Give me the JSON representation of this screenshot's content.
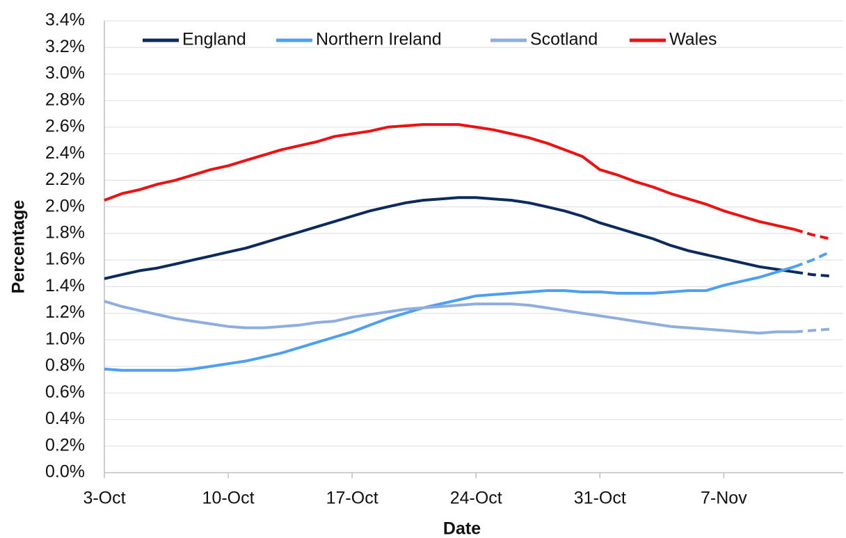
{
  "chart_data": {
    "type": "line",
    "x_label": "Date",
    "y_label": "Percentage",
    "categories": [
      "3-Oct",
      null,
      null,
      null,
      null,
      null,
      null,
      "10-Oct",
      null,
      null,
      null,
      null,
      null,
      null,
      "17-Oct",
      null,
      null,
      null,
      null,
      null,
      null,
      "24-Oct",
      null,
      null,
      null,
      null,
      null,
      null,
      "31-Oct",
      null,
      null,
      null,
      null,
      null,
      null,
      "7-Nov",
      null,
      null,
      null,
      null,
      null,
      null
    ],
    "dashed_from": 39,
    "series": [
      {
        "name": "England",
        "color": "#0b2b5e",
        "values": [
          1.46,
          1.49,
          1.52,
          1.54,
          1.57,
          1.6,
          1.63,
          1.66,
          1.69,
          1.73,
          1.77,
          1.81,
          1.85,
          1.89,
          1.93,
          1.97,
          2.0,
          2.03,
          2.05,
          2.06,
          2.07,
          2.07,
          2.06,
          2.05,
          2.03,
          2.0,
          1.97,
          1.93,
          1.88,
          1.84,
          1.8,
          1.76,
          1.71,
          1.67,
          1.64,
          1.61,
          1.58,
          1.55,
          1.53,
          1.51,
          1.49,
          1.48
        ]
      },
      {
        "name": "Northern Ireland",
        "color": "#4f9ff0",
        "values": [
          0.78,
          0.77,
          0.77,
          0.77,
          0.77,
          0.78,
          0.8,
          0.82,
          0.84,
          0.87,
          0.9,
          0.94,
          0.98,
          1.02,
          1.06,
          1.11,
          1.16,
          1.2,
          1.24,
          1.27,
          1.3,
          1.33,
          1.34,
          1.35,
          1.36,
          1.37,
          1.37,
          1.36,
          1.36,
          1.35,
          1.35,
          1.35,
          1.36,
          1.37,
          1.37,
          1.41,
          1.44,
          1.47,
          1.51,
          1.55,
          1.6,
          1.66
        ]
      },
      {
        "name": "Scotland",
        "color": "#8eaee0",
        "values": [
          1.29,
          1.25,
          1.22,
          1.19,
          1.16,
          1.14,
          1.12,
          1.1,
          1.09,
          1.09,
          1.1,
          1.11,
          1.13,
          1.14,
          1.17,
          1.19,
          1.21,
          1.23,
          1.24,
          1.25,
          1.26,
          1.27,
          1.27,
          1.27,
          1.26,
          1.24,
          1.22,
          1.2,
          1.18,
          1.16,
          1.14,
          1.12,
          1.1,
          1.09,
          1.08,
          1.07,
          1.06,
          1.05,
          1.06,
          1.06,
          1.07,
          1.08
        ]
      },
      {
        "name": "Wales",
        "color": "#ee1111",
        "values": [
          2.05,
          2.1,
          2.13,
          2.17,
          2.2,
          2.24,
          2.28,
          2.31,
          2.35,
          2.39,
          2.43,
          2.46,
          2.49,
          2.53,
          2.55,
          2.57,
          2.6,
          2.61,
          2.62,
          2.62,
          2.62,
          2.6,
          2.58,
          2.55,
          2.52,
          2.48,
          2.43,
          2.38,
          2.28,
          2.24,
          2.19,
          2.15,
          2.1,
          2.06,
          2.02,
          1.97,
          1.93,
          1.89,
          1.86,
          1.83,
          1.79,
          1.76
        ]
      }
    ],
    "ylim": [
      0,
      3.4
    ],
    "yticks": [
      {
        "value": 0,
        "label": "0.0%"
      },
      {
        "value": 0.2,
        "label": "0.2%"
      },
      {
        "value": 0.4,
        "label": "0.4%"
      },
      {
        "value": 0.6,
        "label": "0.6%"
      },
      {
        "value": 0.8,
        "label": "0.8%"
      },
      {
        "value": 1.0,
        "label": "1.0%"
      },
      {
        "value": 1.2,
        "label": "1.2%"
      },
      {
        "value": 1.4,
        "label": "1.4%"
      },
      {
        "value": 1.6,
        "label": "1.6%"
      },
      {
        "value": 1.8,
        "label": "1.8%"
      },
      {
        "value": 2.0,
        "label": "2.0%"
      },
      {
        "value": 2.2,
        "label": "2.2%"
      },
      {
        "value": 2.4,
        "label": "2.4%"
      },
      {
        "value": 2.6,
        "label": "2.6%"
      },
      {
        "value": 2.8,
        "label": "2.8%"
      },
      {
        "value": 3.0,
        "label": "3.0%"
      },
      {
        "value": 3.2,
        "label": "3.2%"
      },
      {
        "value": 3.4,
        "label": "3.4%"
      }
    ],
    "grid": true,
    "legend": "top"
  }
}
